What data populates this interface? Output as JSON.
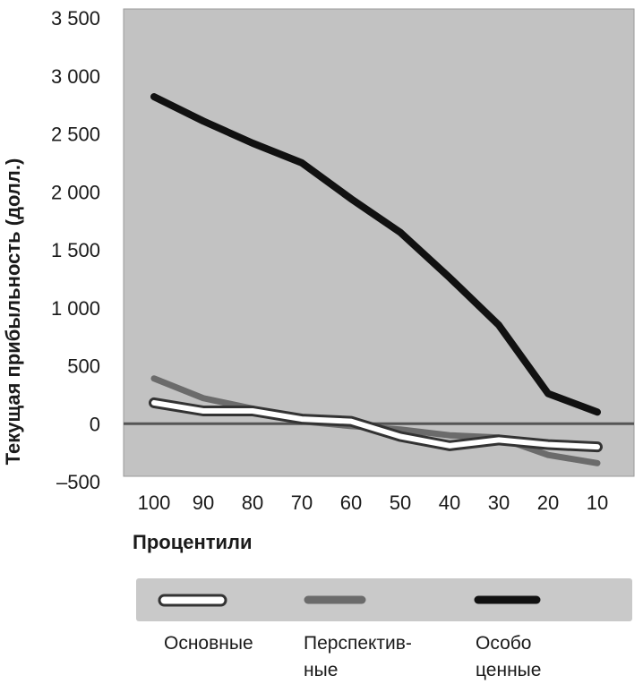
{
  "chart_data": {
    "type": "line",
    "ylabel": "Текущая прибыльность (долл.)",
    "xlabel": "Процентили",
    "ylim": [
      -500,
      3500
    ],
    "yticks": [
      "3 500",
      "3 000",
      "2 500",
      "2 000",
      "1 500",
      "1 000",
      "500",
      "0",
      "–500"
    ],
    "ytick_values": [
      3500,
      3000,
      2500,
      2000,
      1500,
      1000,
      500,
      0,
      -500
    ],
    "categories": [
      "100",
      "90",
      "80",
      "70",
      "60",
      "50",
      "40",
      "30",
      "20",
      "10"
    ],
    "reference_line": 0,
    "grid": false,
    "legend_position": "bottom",
    "series": [
      {
        "name": "Основные",
        "name_lines": [
          "Основные"
        ],
        "style": "outline",
        "color": "#ffffff",
        "values": [
          180,
          110,
          110,
          40,
          20,
          -110,
          -190,
          -140,
          -180,
          -200
        ]
      },
      {
        "name": "Перспективные",
        "name_lines": [
          "Перспектив-",
          "ные"
        ],
        "style": "solid",
        "color": "#6b6b6b",
        "values": [
          390,
          220,
          130,
          20,
          -20,
          -50,
          -100,
          -120,
          -270,
          -340
        ]
      },
      {
        "name": "Особо ценные",
        "name_lines": [
          "Особо",
          "ценные"
        ],
        "style": "solid",
        "color": "#111111",
        "values": [
          2820,
          2610,
          2420,
          2250,
          1940,
          1650,
          1260,
          850,
          260,
          100
        ]
      }
    ]
  }
}
